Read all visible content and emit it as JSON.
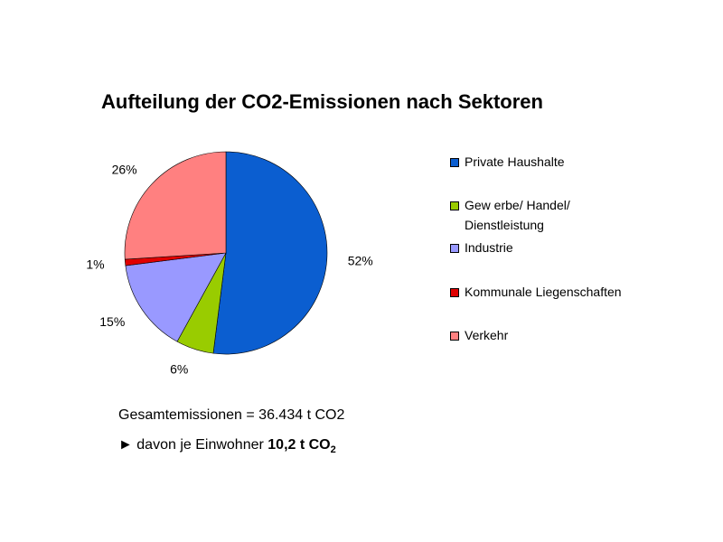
{
  "chart_data": {
    "type": "pie",
    "title": "Aufteilung der CO2-Emissionen nach Sektoren",
    "slices": [
      {
        "label": "Private Haushalte",
        "value": 52,
        "value_label": "52%",
        "color": "#0b5ed0"
      },
      {
        "label": "Gew erbe/ Handel/ Dienstleistung",
        "value": 6,
        "value_label": "6%",
        "color": "#99cc00"
      },
      {
        "label": "Industrie",
        "value": 15,
        "value_label": "15%",
        "color": "#9999ff"
      },
      {
        "label": "Kommunale Liegenschaften",
        "value": 1,
        "value_label": "1%",
        "color": "#e00000"
      },
      {
        "label": "Verkehr",
        "value": 26,
        "value_label": "26%",
        "color": "#ff8080"
      }
    ],
    "legend_position": "right"
  },
  "legend": {
    "items": [
      {
        "line1": "Private Haushalte"
      },
      {
        "line1": "Gew erbe/ Handel/",
        "line2": "Dienstleistung"
      },
      {
        "line1": "Industrie"
      },
      {
        "line1": "Kommunale Liegenschaften"
      },
      {
        "line1": "Verkehr"
      }
    ]
  },
  "summary": {
    "total": "Gesamtemissionen = 36.434 t CO2",
    "per_inhabitant_prefix": "► davon je Einwohner ",
    "per_inhabitant_value": "10,2 t CO",
    "per_inhabitant_sub": "2"
  }
}
